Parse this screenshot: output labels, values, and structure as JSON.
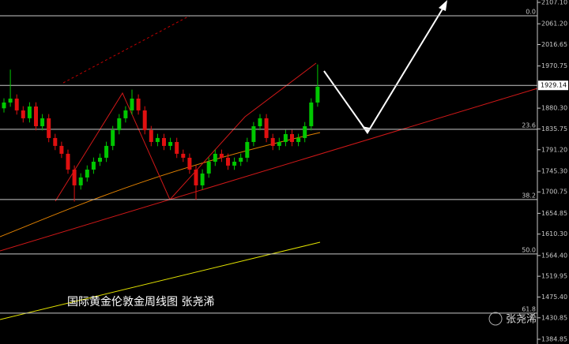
{
  "chart_data": {
    "type": "candlestick",
    "open": [
      1880.0,
      1892.4,
      1900.8,
      1875.5,
      1858.6,
      1883.9,
      1841.6,
      1858.6,
      1816.3,
      1799.4,
      1782.5,
      1748.6,
      1714.8,
      1731.7,
      1748.6,
      1765.5,
      1774.0,
      1799.4,
      1833.2,
      1858.6,
      1875.5,
      1900.8,
      1875.5,
      1833.2,
      1807.8,
      1816.3,
      1799.4,
      1807.8,
      1782.5,
      1774.0,
      1748.6,
      1714.8,
      1740.2,
      1765.5,
      1782.5,
      1774.0,
      1757.1,
      1765.5,
      1774.0,
      1807.8,
      1841.6,
      1858.6,
      1816.3,
      1799.4,
      1807.8,
      1824.7,
      1807.8,
      1816.3,
      1841.6,
      1892.4
    ],
    "high": [
      1901.4,
      1963.0,
      1909.8,
      1884.5,
      1892.9,
      1892.9,
      1867.6,
      1867.6,
      1825.3,
      1808.4,
      1791.5,
      1757.6,
      1740.7,
      1757.6,
      1774.5,
      1783.0,
      1808.4,
      1842.2,
      1867.6,
      1884.5,
      1920.0,
      1909.8,
      1884.5,
      1842.2,
      1825.3,
      1825.3,
      1816.8,
      1816.8,
      1791.5,
      1783.0,
      1757.6,
      1749.2,
      1774.5,
      1791.5,
      1791.5,
      1783.0,
      1774.5,
      1783.0,
      1816.8,
      1850.6,
      1867.6,
      1867.6,
      1825.3,
      1816.8,
      1833.7,
      1833.7,
      1825.3,
      1850.6,
      1901.4,
      1974.0
    ],
    "low": [
      1871.0,
      1883.4,
      1866.5,
      1849.6,
      1849.6,
      1832.6,
      1832.6,
      1807.3,
      1790.4,
      1773.5,
      1739.6,
      1680.0,
      1705.8,
      1722.7,
      1739.6,
      1756.5,
      1765.0,
      1790.4,
      1824.2,
      1849.6,
      1866.5,
      1866.5,
      1824.2,
      1798.8,
      1798.8,
      1790.4,
      1790.4,
      1773.5,
      1765.0,
      1739.6,
      1684.0,
      1705.8,
      1731.2,
      1756.5,
      1765.0,
      1748.1,
      1748.1,
      1756.5,
      1765.0,
      1798.8,
      1832.6,
      1807.3,
      1790.4,
      1790.4,
      1798.8,
      1798.8,
      1798.8,
      1807.3,
      1832.6,
      1883.4
    ],
    "close": [
      1892.4,
      1900.8,
      1875.5,
      1858.6,
      1883.9,
      1841.6,
      1858.6,
      1816.3,
      1799.4,
      1782.5,
      1748.6,
      1714.8,
      1731.7,
      1748.6,
      1765.5,
      1774.0,
      1799.4,
      1833.2,
      1858.6,
      1875.5,
      1900.8,
      1875.5,
      1833.2,
      1807.8,
      1816.3,
      1799.4,
      1807.8,
      1782.5,
      1774.0,
      1748.6,
      1714.8,
      1740.2,
      1765.5,
      1782.5,
      1774.0,
      1757.1,
      1765.5,
      1774.0,
      1807.8,
      1841.6,
      1858.6,
      1816.3,
      1799.4,
      1807.8,
      1824.7,
      1807.8,
      1816.3,
      1841.6,
      1892.4,
      1926.2
    ],
    "up_color": "#00c800",
    "down_color": "#e01010",
    "ylim": [
      2112.2,
      1374.7
    ],
    "yticks": [
      {
        "value": 2107.1,
        "label": "2107.10"
      },
      {
        "value": 2061.2,
        "label": "2061.20"
      },
      2016.65,
      1970.75,
      {
        "value": 1880.3,
        "label": "1880.30"
      },
      1835.75,
      {
        "value": 1791.2,
        "label": "1791.20"
      },
      {
        "value": 1745.3,
        "label": "1745.30"
      },
      1700.75,
      1654.85,
      {
        "value": 1610.3,
        "label": "1610.30"
      },
      {
        "value": 1564.4,
        "label": "1564.40"
      },
      1519.95,
      {
        "value": 1475.4,
        "label": "1475.40"
      },
      1430.85,
      1384.85
    ],
    "levels": [
      {
        "value": 2078.4,
        "label": "0.0"
      },
      {
        "value": 1834.9,
        "label": "23.6"
      },
      {
        "value": 1684.4,
        "label": "38.2"
      },
      {
        "value": 1567.7,
        "label": "50.0"
      },
      {
        "value": 1440.9,
        "label": "61.8"
      }
    ],
    "last_price": 1929.14,
    "annotation": "国际黄金伦敦金周线图  张尧浠"
  },
  "watermark": "张尧浠"
}
